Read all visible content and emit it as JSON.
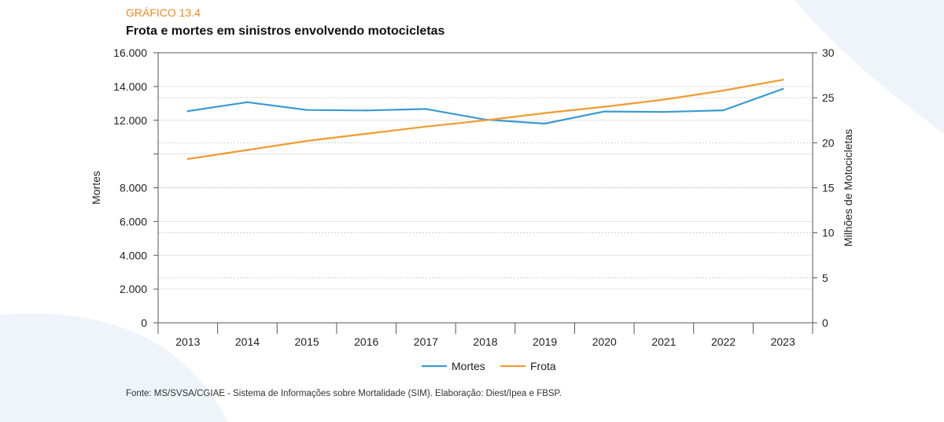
{
  "header": {
    "chart_label": "GRÁFICO 13.4",
    "title": "Frota e mortes em sinistros envolvendo motocicletas"
  },
  "footer": {
    "source": "Fonte: MS/SVSA/CGIAE - Sistema de Informações sobre Mortalidade (SIM). Elaboração: Diest/Ipea e FBSP."
  },
  "colors": {
    "mortes": "#3b9ad1",
    "frota": "#f39a2e",
    "accent": "#f08a24",
    "background_shape": "#eef4fa"
  },
  "chart_data": {
    "type": "line",
    "title": "Frota e mortes em sinistros envolvendo motocicletas",
    "x": [
      "2013",
      "2014",
      "2015",
      "2016",
      "2017",
      "2018",
      "2019",
      "2020",
      "2021",
      "2022",
      "2023"
    ],
    "y_left": {
      "label": "Mortes",
      "lim": [
        0,
        16000
      ],
      "ticks": [
        0,
        2000,
        4000,
        6000,
        8000,
        10000,
        12000,
        14000,
        16000
      ],
      "tick_labels": [
        "0",
        "2.000",
        "4.000",
        "6.000",
        "8.000",
        "",
        "12.000",
        "14.000",
        "16.000"
      ]
    },
    "y_right": {
      "label": "Milhões de Motocicletas",
      "lim": [
        0,
        30
      ],
      "ticks": [
        0,
        5,
        10,
        15,
        20,
        25,
        30
      ],
      "tick_labels": [
        "0",
        "5",
        "10",
        "15",
        "20",
        "25",
        "30"
      ]
    },
    "series": [
      {
        "name": "Mortes",
        "axis": "left",
        "values": [
          12540,
          13070,
          12610,
          12580,
          12670,
          12040,
          11800,
          12520,
          12490,
          12590,
          13860
        ]
      },
      {
        "name": "Frota",
        "axis": "right",
        "values": [
          18.2,
          19.2,
          20.2,
          21.0,
          21.8,
          22.5,
          23.3,
          24.0,
          24.8,
          25.8,
          27.0
        ]
      }
    ],
    "grid": true,
    "legend": "bottom-center"
  }
}
